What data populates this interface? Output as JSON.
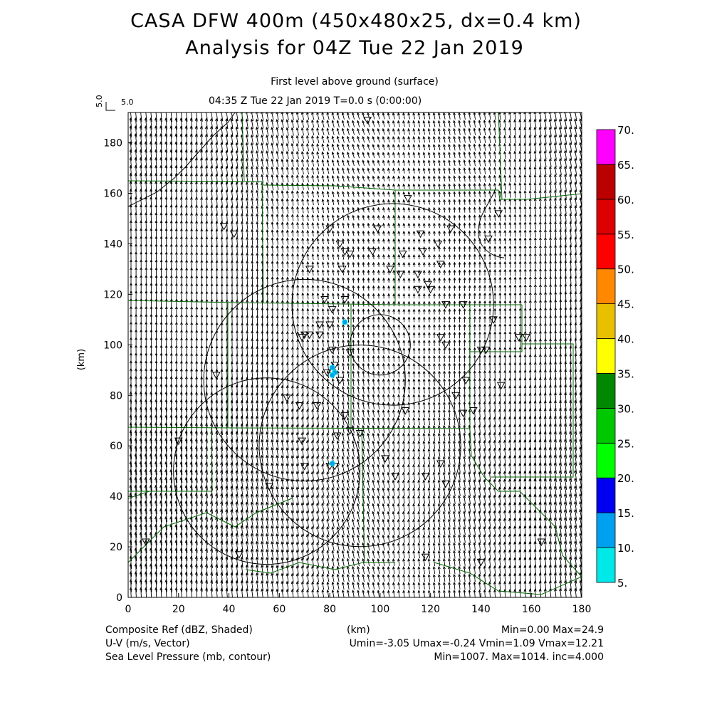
{
  "title": {
    "line1": "CASA DFW 400m (450x480x25, dx=0.4 km)",
    "line2": "Analysis for 04Z Tue 22 Jan 2019"
  },
  "subtitle": {
    "level": "First level above ground (surface)",
    "time": "04:35 Z Tue 22 Jan 2019    T=0.0 s (0:00:00)"
  },
  "vector_key": {
    "label_v": "5.0",
    "label_h": "5.0"
  },
  "axes": {
    "xlabel": "(km)",
    "ylabel": "(km)",
    "xticks": [
      "0",
      "20",
      "40",
      "60",
      "80",
      "100",
      "120",
      "140",
      "160",
      "180"
    ],
    "yticks": [
      "0",
      "20",
      "40",
      "60",
      "80",
      "100",
      "120",
      "140",
      "160",
      "180"
    ],
    "xrange": [
      0,
      180
    ],
    "yrange": [
      0,
      192
    ]
  },
  "colorbar": {
    "labels": [
      "5.",
      "10.",
      "15.",
      "20.",
      "25.",
      "30.",
      "35.",
      "40.",
      "45.",
      "50.",
      "55.",
      "60.",
      "65.",
      "70."
    ],
    "colors": [
      "#00e8e8",
      "#00a0f0",
      "#0000f0",
      "#00ff00",
      "#00c800",
      "#008800",
      "#ffff00",
      "#e8c000",
      "#ff8800",
      "#ff0000",
      "#dd0000",
      "#bb0000",
      "#ff00ff"
    ]
  },
  "footer": {
    "field1": "Composite Ref (dBZ, Shaded)",
    "field1_stats": "Min=0.00 Max=24.9",
    "field2": "U-V (m/s, Vector)",
    "field2_stats": "Umin=-3.05 Umax=-0.24 Vmin=1.09 Vmax=12.21",
    "field3": "Sea Level Pressure (mb, contour)",
    "field3_stats": "Min=1007. Max=1014. inc=4.000",
    "xlabel": "(km)"
  },
  "map_data": {
    "radar_rings": [
      {
        "center": [
          105,
          116
        ],
        "radius": 40
      },
      {
        "center": [
          70,
          86
        ],
        "radius": 40
      },
      {
        "center": [
          55,
          50
        ],
        "radius": 37
      },
      {
        "center": [
          92,
          60
        ],
        "radius": 40
      },
      {
        "center": [
          100,
          100
        ],
        "radius": 12
      }
    ],
    "stations": [
      [
        95,
        189
      ],
      [
        84,
        140
      ],
      [
        80,
        146
      ],
      [
        99,
        146
      ],
      [
        88,
        136
      ],
      [
        72,
        130
      ],
      [
        85,
        130
      ],
      [
        104,
        130
      ],
      [
        78,
        118
      ],
      [
        86,
        118
      ],
      [
        81,
        114
      ],
      [
        76,
        108
      ],
      [
        70,
        104
      ],
      [
        72,
        104
      ],
      [
        76,
        104
      ],
      [
        80,
        108
      ],
      [
        69,
        103
      ],
      [
        81,
        98
      ],
      [
        88,
        97
      ],
      [
        82,
        92
      ],
      [
        79,
        89
      ],
      [
        81,
        89
      ],
      [
        84,
        86
      ],
      [
        63,
        79
      ],
      [
        68,
        76
      ],
      [
        75,
        76
      ],
      [
        86,
        72
      ],
      [
        83,
        64
      ],
      [
        88,
        66
      ],
      [
        92,
        65
      ],
      [
        80,
        52
      ],
      [
        82,
        52
      ],
      [
        70,
        52
      ],
      [
        106,
        48
      ],
      [
        124,
        53
      ],
      [
        126,
        45
      ],
      [
        118,
        16
      ],
      [
        164,
        22
      ],
      [
        56,
        44
      ],
      [
        44,
        17
      ],
      [
        7,
        22
      ],
      [
        20,
        62
      ],
      [
        35,
        88
      ],
      [
        69,
        62
      ],
      [
        102,
        55
      ],
      [
        110,
        74
      ],
      [
        118,
        48
      ],
      [
        140,
        14
      ],
      [
        140,
        98
      ],
      [
        130,
        80
      ],
      [
        137,
        74
      ],
      [
        142,
        98
      ],
      [
        155,
        103
      ],
      [
        147,
        152
      ],
      [
        143,
        142
      ],
      [
        128,
        146
      ],
      [
        123,
        140
      ],
      [
        111,
        158
      ],
      [
        116,
        144
      ],
      [
        109,
        136
      ],
      [
        117,
        137
      ],
      [
        108,
        128
      ],
      [
        115,
        122
      ],
      [
        119,
        124
      ],
      [
        120,
        122
      ],
      [
        124,
        132
      ],
      [
        126,
        116
      ],
      [
        133,
        116
      ],
      [
        145,
        110
      ],
      [
        158,
        103
      ],
      [
        115,
        128
      ],
      [
        124,
        103
      ],
      [
        126,
        100
      ],
      [
        133,
        73
      ],
      [
        148,
        84
      ],
      [
        38,
        147
      ],
      [
        42,
        144
      ],
      [
        134,
        86
      ],
      [
        97,
        137
      ],
      [
        86,
        137
      ]
    ],
    "echoes": [
      [
        86,
        109
      ],
      [
        81,
        91
      ],
      [
        82,
        89
      ],
      [
        81,
        88
      ],
      [
        81,
        53
      ]
    ]
  }
}
